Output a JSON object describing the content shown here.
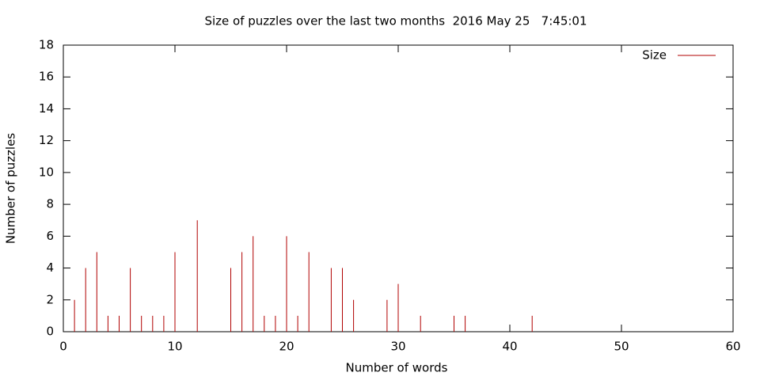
{
  "chart_data": {
    "type": "impulse",
    "title": "Size of puzzles over the last two months  2016 May 25   7:45:01",
    "x_label": "Number of words",
    "y_label": "Number of puzzles",
    "x": [
      1,
      2,
      3,
      4,
      5,
      6,
      7,
      8,
      9,
      10,
      12,
      15,
      16,
      17,
      18,
      19,
      20,
      21,
      22,
      24,
      25,
      26,
      29,
      30,
      32,
      35,
      36,
      42
    ],
    "series": [
      {
        "name": "Size",
        "color": "#b00000",
        "values": [
          2,
          4,
          5,
          1,
          1,
          4,
          1,
          1,
          1,
          5,
          7,
          4,
          5,
          6,
          1,
          1,
          6,
          1,
          5,
          4,
          4,
          2,
          2,
          3,
          1,
          1,
          1,
          1
        ]
      }
    ],
    "xlim": [
      0,
      60
    ],
    "xticks": [
      0,
      10,
      20,
      30,
      40,
      50,
      60
    ],
    "ylim": [
      0,
      18
    ],
    "yticks": [
      0,
      2,
      4,
      6,
      8,
      10,
      12,
      14,
      16,
      18
    ],
    "legend": "top-right"
  }
}
